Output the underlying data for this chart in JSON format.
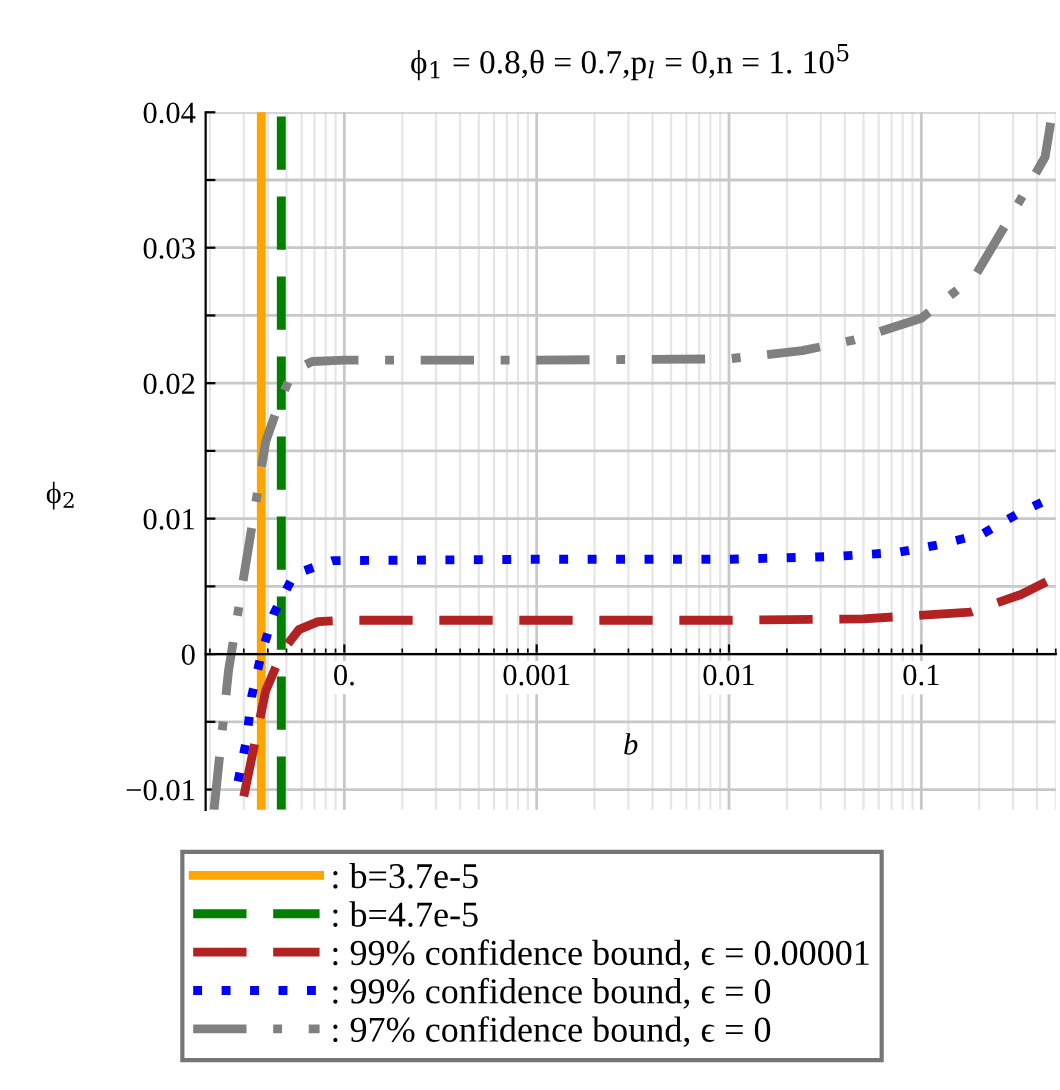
{
  "chart_data": {
    "type": "line",
    "title": "ϕ$_{1}$ = 0.8,θ = 0.7,p$_{l}$ = 0,n = 1. 10$^{5}$",
    "xlabel": "b",
    "ylabel": "ϕ$_{2}$",
    "log": "x",
    "xlim": [
      1.9e-05,
      0.5
    ],
    "ylim": [
      -0.0115,
      0.04
    ],
    "xticks": [
      {
        "value": 0.0001,
        "label": "0."
      },
      0.001,
      0.01,
      0.1
    ],
    "yticks": [
      {
        "value": -0.01,
        "label": "−0.01"
      },
      {
        "value": -0.005,
        "label": null
      },
      0,
      {
        "value": 0.005,
        "label": null
      },
      0.01,
      {
        "value": 0.015,
        "label": null
      },
      0.02,
      {
        "value": 0.025,
        "label": null
      },
      0.03,
      {
        "value": 0.035,
        "label": null
      },
      0.04
    ],
    "grid": true,
    "legend": "bottom",
    "series": [
      {
        "name": ": b=3.7e-5",
        "color": "#ffa500",
        "line_style": "solid",
        "x": [
          3.7e-05,
          3.7e-05
        ],
        "values": [
          -0.0115,
          0.04
        ]
      },
      {
        "name": ": b=4.7e-5",
        "color": "#008000",
        "line_style": "dashed",
        "x": [
          4.7e-05,
          4.7e-05
        ],
        "values": [
          -0.0115,
          0.04
        ]
      },
      {
        "name": ": 99% confidence bound, ϵ = 0.00001",
        "color": "#b22222",
        "line_style": "dashed",
        "x": [
          3e-05,
          3.9e-05,
          4.8e-05,
          5.8e-05,
          7.3e-05,
          0.0001,
          0.001,
          0.01,
          0.05,
          0.18,
          0.33,
          0.47
        ],
        "values": [
          -0.0105,
          -0.0027,
          0.0003,
          0.0018,
          0.0024,
          0.0025,
          0.0025,
          0.0025,
          0.0026,
          0.0031,
          0.0044,
          0.0055
        ]
      },
      {
        "name": ": 99% confidence bound, ϵ = 0",
        "color": "#0000ff",
        "line_style": "dotted",
        "x": [
          2.8e-05,
          3.1e-05,
          3.3e-05,
          3.7e-05,
          4.3e-05,
          5.5e-05,
          8.7e-05,
          0.001,
          0.01,
          0.035,
          0.075,
          0.126,
          0.21,
          0.33,
          0.47
        ],
        "values": [
          -0.0094,
          -0.0063,
          -0.0031,
          0.0,
          0.003,
          0.0059,
          0.0069,
          0.007,
          0.007,
          0.0072,
          0.0075,
          0.0081,
          0.0089,
          0.0105,
          0.0115
        ]
      },
      {
        "name": ": 97% confidence bound, ϵ = 0",
        "color": "#808080",
        "line_style": "dashdot",
        "x": [
          2.1e-05,
          2.5e-05,
          3.9e-05,
          4.6e-05,
          5.4e-05,
          6.8e-05,
          0.0001,
          0.001,
          0.01,
          0.024,
          0.045,
          0.1,
          0.19,
          0.32,
          0.44,
          0.48
        ],
        "values": [
          -0.0115,
          -0.0012,
          0.0157,
          0.0186,
          0.0209,
          0.0216,
          0.0217,
          0.0217,
          0.0218,
          0.0224,
          0.0232,
          0.0248,
          0.0279,
          0.0333,
          0.0367,
          0.04
        ]
      }
    ]
  }
}
